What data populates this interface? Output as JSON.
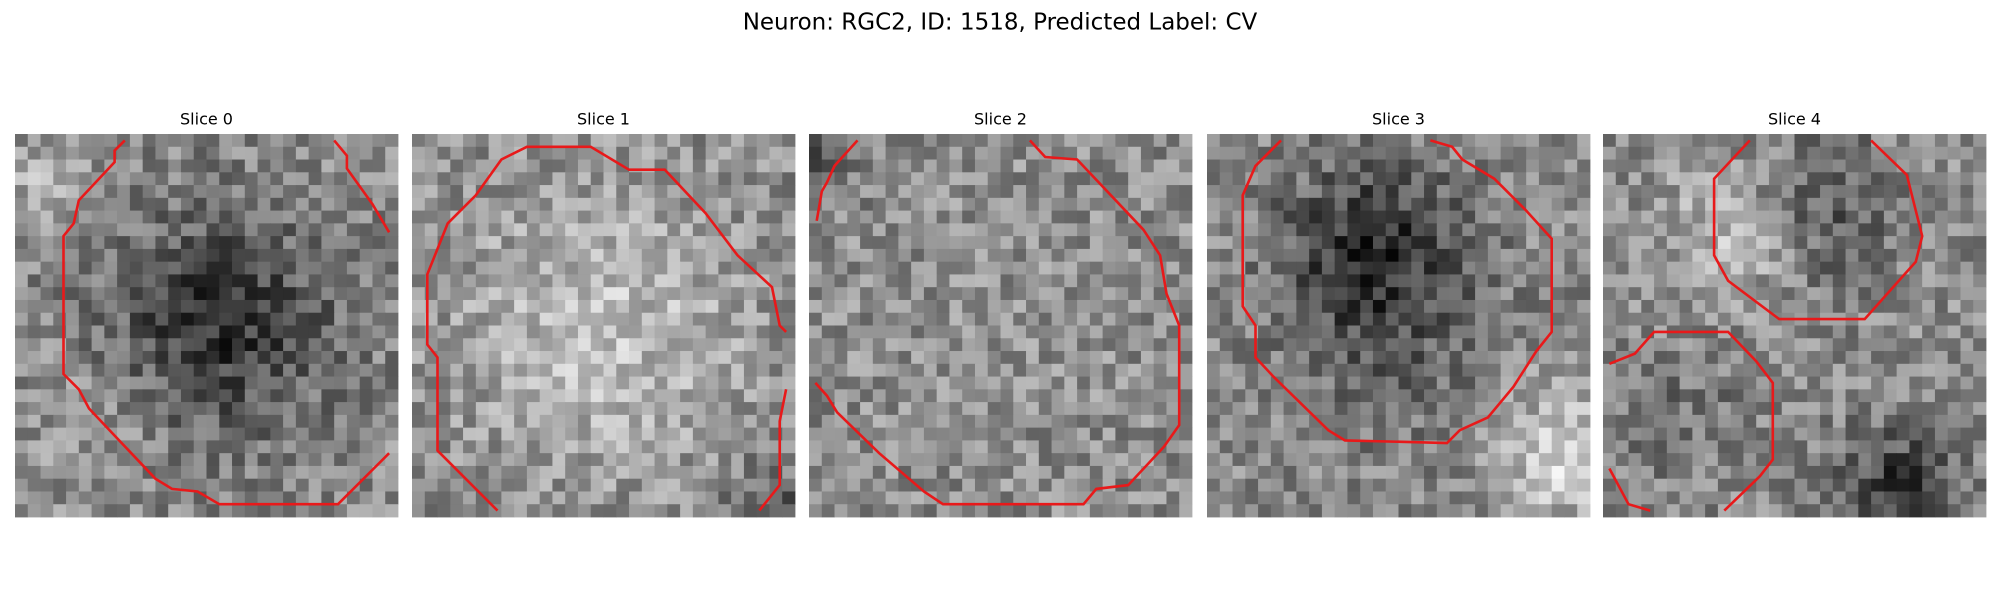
{
  "title": "Neuron: RGC2, ID: 1518, Predicted Label: CV",
  "panels": [
    {
      "title": "Slice 0"
    },
    {
      "title": "Slice 1"
    },
    {
      "title": "Slice 2"
    },
    {
      "title": "Slice 3"
    },
    {
      "title": "Slice 4"
    }
  ]
}
